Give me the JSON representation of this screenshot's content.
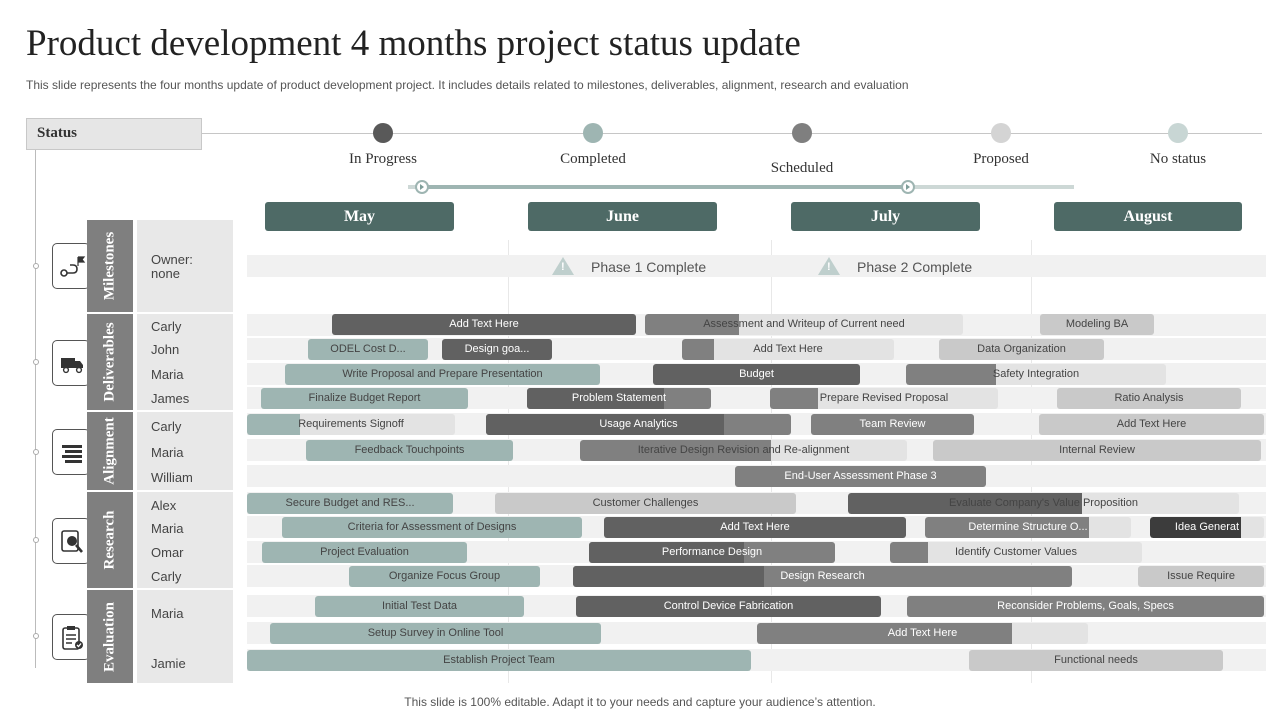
{
  "header": {
    "title": "Product development 4 months project status update",
    "subtitle": "This slide represents the four months update of product development project. It includes details related to milestones, deliverables, alignment, research and evaluation"
  },
  "status": {
    "label": "Status",
    "legend": [
      {
        "label": "In Progress",
        "color": "#595959"
      },
      {
        "label": "Completed",
        "color": "#9eb5b2"
      },
      {
        "label": "Scheduled",
        "color": "#7f7f7f"
      },
      {
        "label": "Proposed",
        "color": "#d4d4d4"
      },
      {
        "label": "No status",
        "color": "#c8d6d4"
      }
    ]
  },
  "months": [
    "May",
    "June",
    "July",
    "August"
  ],
  "categories": [
    "Milestones",
    "Deliverables",
    "Alignment",
    "Research",
    "Evaluation"
  ],
  "milestones_row": {
    "owner": "Owner:\nnone",
    "items": [
      "Phase 1 Complete",
      "Phase 2 Complete"
    ]
  },
  "people": [
    "Carly",
    "John",
    "Maria",
    "James",
    "Carly",
    "Maria",
    "William",
    "Alex",
    "Maria",
    "Omar",
    "Carly",
    "Maria",
    "Jamie"
  ],
  "colors": {
    "teal": "#9eb5b2",
    "dark": "#616161",
    "mid": "#808080",
    "light": "#c9c9c9",
    "pale": "#e3e3e3",
    "black": "#3c3c3c"
  },
  "tasks": [
    {
      "label": "Add Text Here",
      "status": "In Progress"
    },
    {
      "label": "Assessment and Writeup of Current need",
      "status": "Scheduled"
    },
    {
      "label": "Modeling BA",
      "status": "Proposed"
    },
    {
      "label": "ODEL Cost D...",
      "status": "Completed"
    },
    {
      "label": "Design goa...",
      "status": "In Progress"
    },
    {
      "label": "Add Text Here",
      "status": "Scheduled"
    },
    {
      "label": "Data Organization",
      "status": "Proposed"
    },
    {
      "label": "Write Proposal and Prepare Presentation",
      "status": "Completed"
    },
    {
      "label": "Budget",
      "status": "In Progress"
    },
    {
      "label": "Safety Integration",
      "status": "Scheduled"
    },
    {
      "label": "Finalize Budget Report",
      "status": "Completed"
    },
    {
      "label": "Problem Statement",
      "status": "In Progress"
    },
    {
      "label": "Prepare Revised Proposal",
      "status": "Scheduled"
    },
    {
      "label": "Ratio Analysis",
      "status": "Proposed"
    },
    {
      "label": "Requirements Signoff",
      "status": "Completed"
    },
    {
      "label": "Usage Analytics",
      "status": "In Progress"
    },
    {
      "label": "Team Review",
      "status": "Scheduled"
    },
    {
      "label": "Add Text Here",
      "status": "Proposed"
    },
    {
      "label": "Feedback Touchpoints",
      "status": "Completed"
    },
    {
      "label": "Iterative Design Revision and Re-alignment",
      "status": "Scheduled"
    },
    {
      "label": "Internal Review",
      "status": "Proposed"
    },
    {
      "label": "End-User Assessment Phase 3",
      "status": "Scheduled"
    },
    {
      "label": "Secure Budget and RES...",
      "status": "Completed"
    },
    {
      "label": "Customer Challenges",
      "status": "Proposed"
    },
    {
      "label": "Evaluate Company's Value Proposition",
      "status": "In Progress"
    },
    {
      "label": "Criteria for Assessment of Designs",
      "status": "Completed"
    },
    {
      "label": "Add Text Here",
      "status": "In Progress"
    },
    {
      "label": "Determine Structure O...",
      "status": "Scheduled"
    },
    {
      "label": "Idea Generat",
      "status": "In Progress"
    },
    {
      "label": "Project Evaluation",
      "status": "Completed"
    },
    {
      "label": "Performance Design",
      "status": "In Progress"
    },
    {
      "label": "Identify Customer Values",
      "status": "Scheduled"
    },
    {
      "label": "Organize Focus Group",
      "status": "Completed"
    },
    {
      "label": "Design Research",
      "status": "In Progress"
    },
    {
      "label": "Issue Require",
      "status": "Proposed"
    },
    {
      "label": "Initial Test Data",
      "status": "Completed"
    },
    {
      "label": "Control Device Fabrication",
      "status": "In Progress"
    },
    {
      "label": "Reconsider Problems, Goals, Specs",
      "status": "Scheduled"
    },
    {
      "label": "Setup Survey in Online Tool",
      "status": "Completed"
    },
    {
      "label": "Add Text Here",
      "status": "Scheduled"
    },
    {
      "label": "Establish Project Team",
      "status": "Completed"
    },
    {
      "label": "Functional needs",
      "status": "Proposed"
    }
  ],
  "footer": "This slide is 100% editable. Adapt it to your needs and capture your audience’s attention."
}
